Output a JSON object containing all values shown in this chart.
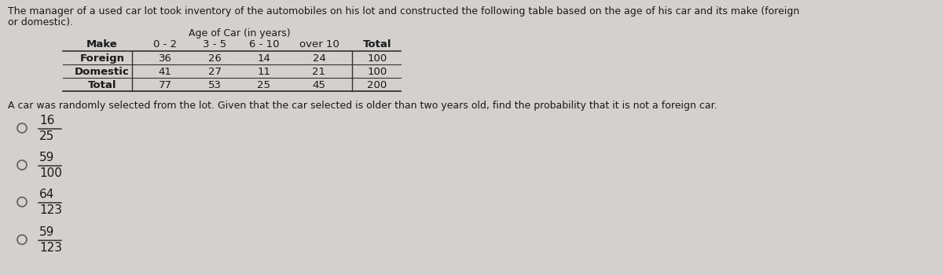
{
  "bg_color": "#d3d0ce",
  "text_color": "#1a1a1a",
  "title_lines": [
    "The manager of a used car lot took inventory of the automobiles on his lot and constructed the following table based on the age of his car and its make (foreign",
    "or domestic)."
  ],
  "table_header_age": "Age of Car (in years)",
  "table_col_headers": [
    "Make",
    "0 - 2",
    "3 - 5",
    "6 - 10",
    "over 10",
    "Total"
  ],
  "table_rows": [
    [
      "Foreign",
      "36",
      "26",
      "14",
      "24",
      "100"
    ],
    [
      "Domestic",
      "41",
      "27",
      "11",
      "21",
      "100"
    ],
    [
      "Total",
      "77",
      "53",
      "25",
      "45",
      "200"
    ]
  ],
  "question": "A car was randomly selected from the lot. Given that the car selected is older than two years old, find the probability that it is not a foreign car.",
  "options": [
    {
      "numerator": "16",
      "denominator": "25"
    },
    {
      "numerator": "59",
      "denominator": "100"
    },
    {
      "numerator": "64",
      "denominator": "123"
    },
    {
      "numerator": "59",
      "denominator": "123"
    }
  ],
  "font_size_title": 9.0,
  "font_size_table_header": 9.0,
  "font_size_table": 9.5,
  "font_size_question": 9.0,
  "font_size_options": 11.0,
  "font_size_circle": 9.0
}
